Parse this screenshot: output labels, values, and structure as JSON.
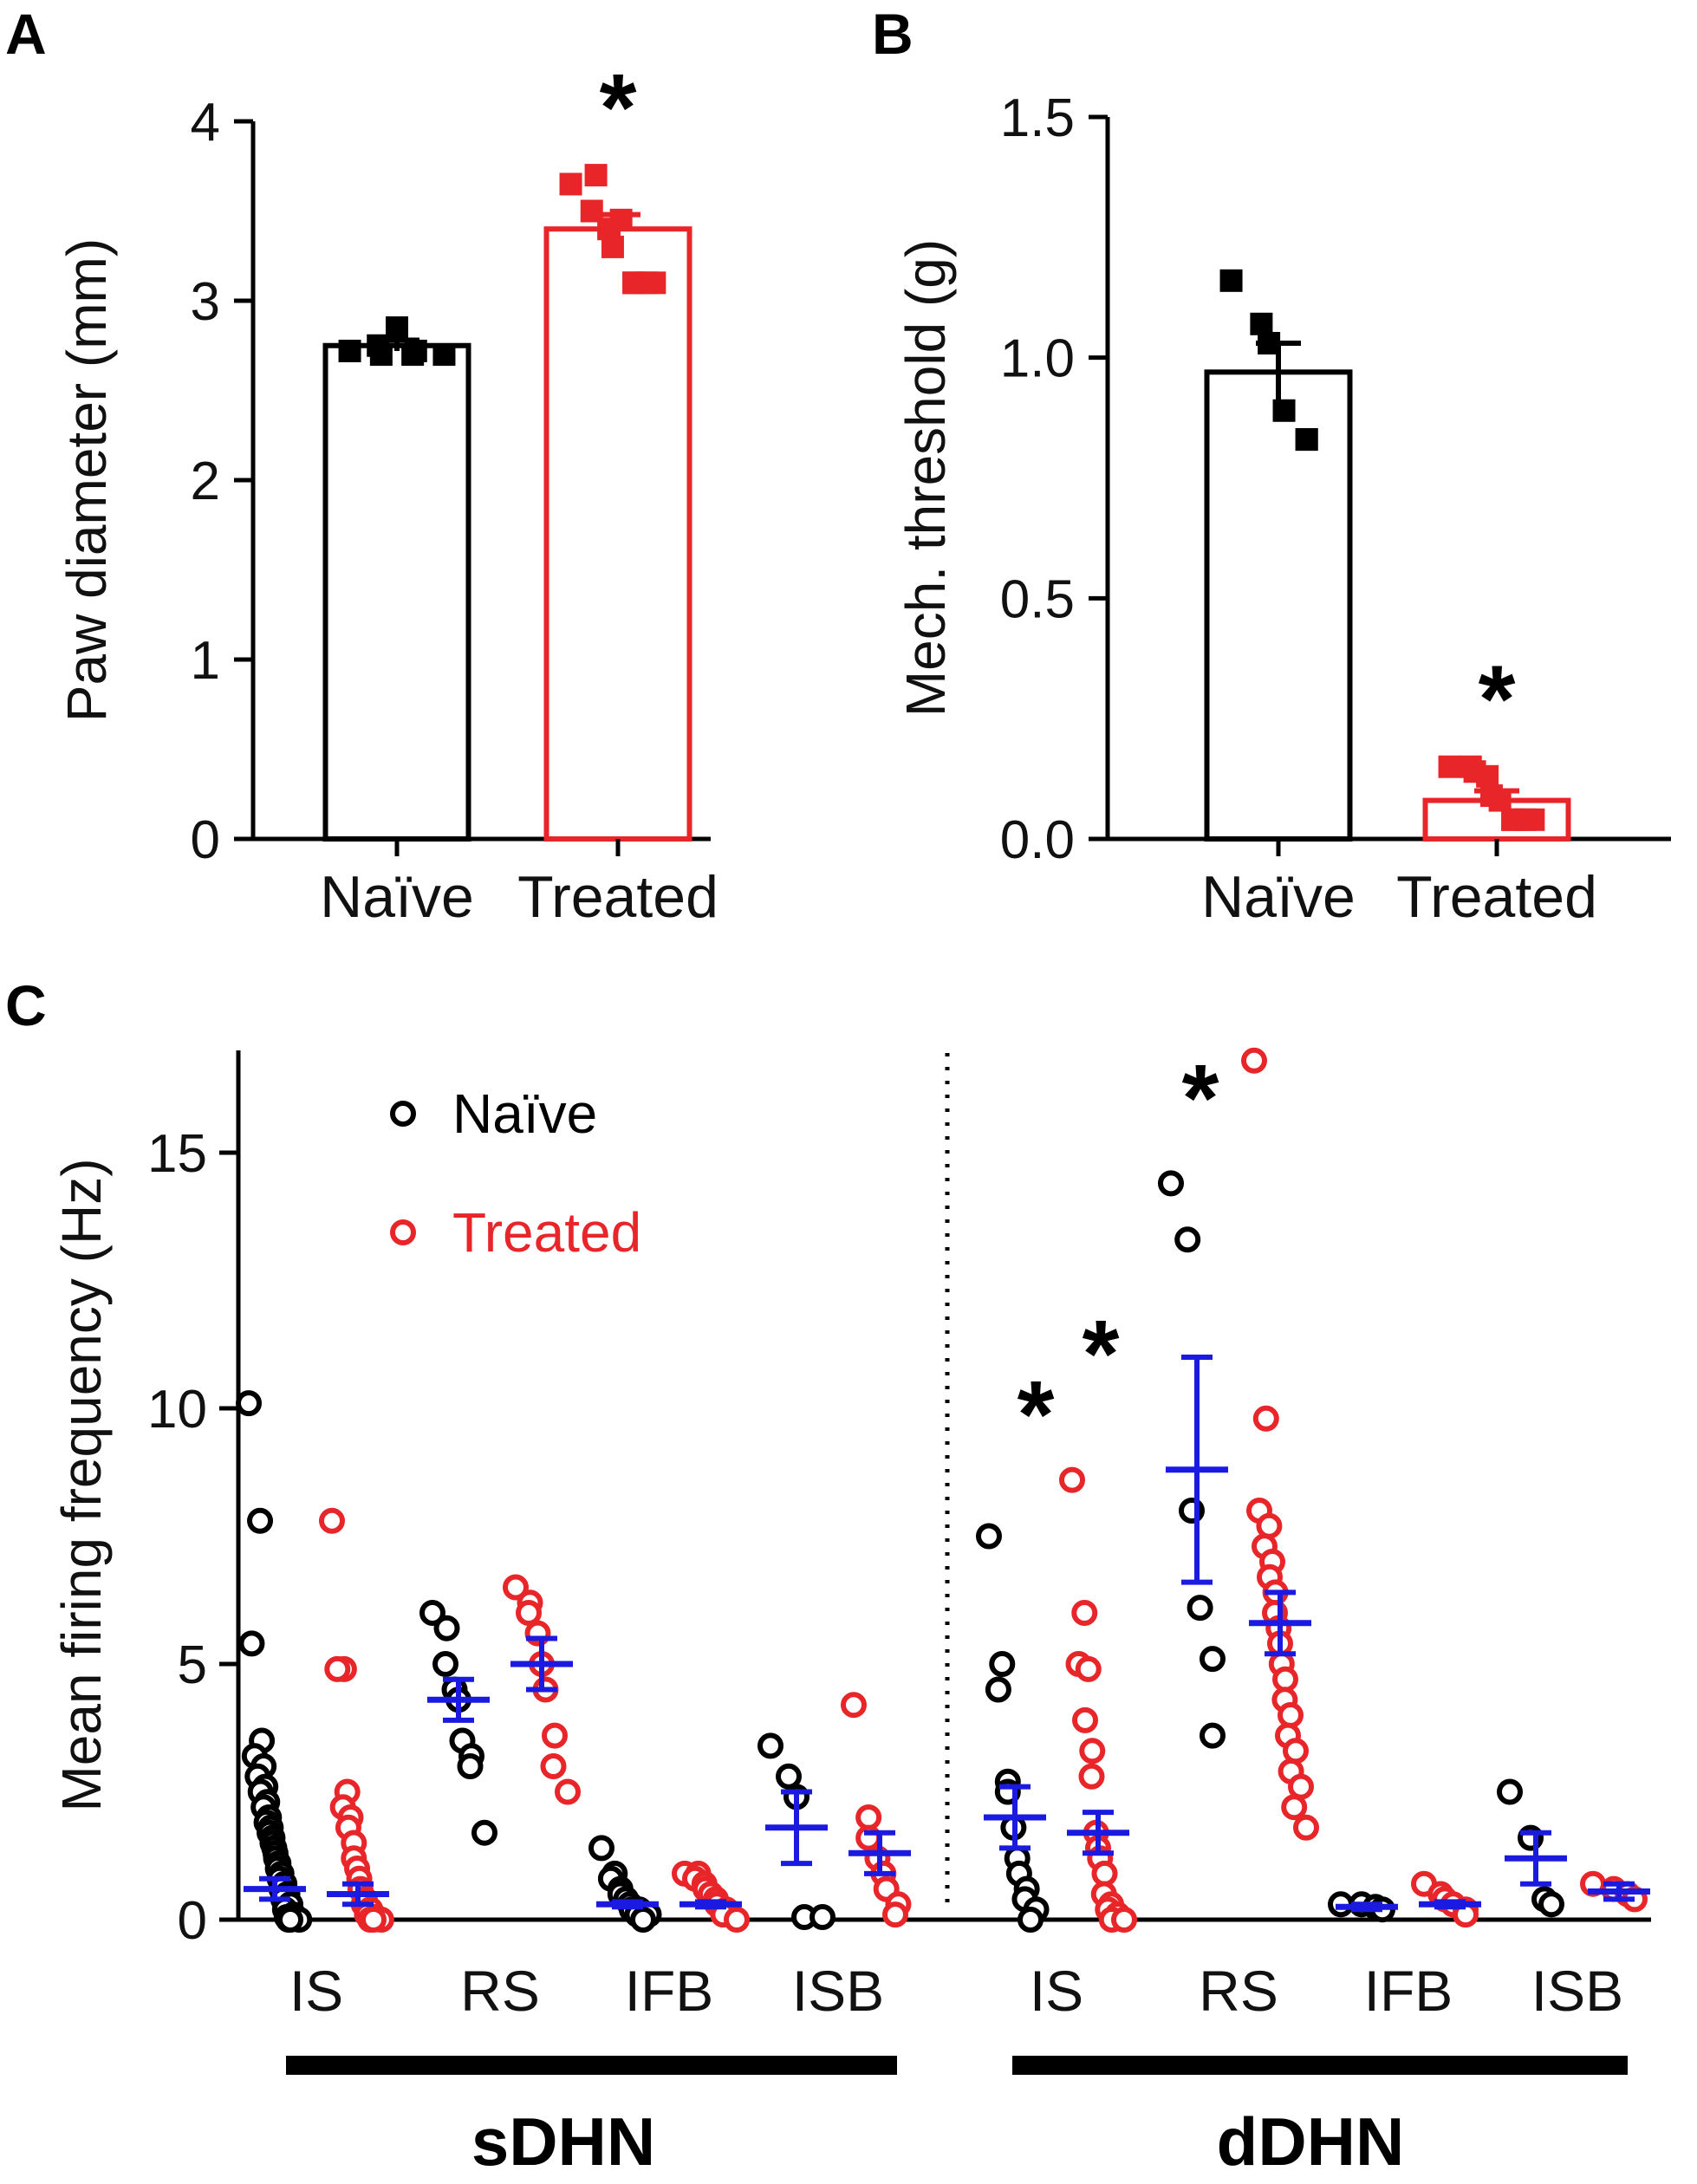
{
  "chart_data": [
    {
      "panel_label": "A",
      "type": "bar",
      "ylabel": "Paw diameter (mm)",
      "ylim": [
        0,
        4
      ],
      "yticks": [
        "0",
        "1",
        "2",
        "3",
        "4"
      ],
      "categories": [
        "Naïve",
        "Treated"
      ],
      "values": [
        2.75,
        3.4
      ],
      "errors": [
        0.03,
        0.08
      ],
      "colors": [
        "#000000",
        "#e8262a"
      ],
      "points": [
        [
          2.72,
          2.75,
          2.7,
          2.85,
          2.7,
          2.72,
          2.7
        ],
        [
          3.65,
          3.7,
          3.5,
          3.4,
          3.3,
          3.45,
          3.1,
          3.1,
          3.1,
          3.1
        ]
      ],
      "significance": [
        "",
        "*"
      ]
    },
    {
      "panel_label": "B",
      "type": "bar",
      "ylabel": "Mech. threshold (g)",
      "ylim": [
        0,
        1.5
      ],
      "yticks": [
        "0.0",
        "0.5",
        "1.0",
        "1.5"
      ],
      "categories": [
        "Naïve",
        "Treated"
      ],
      "values": [
        0.97,
        0.08
      ],
      "errors": [
        0.06,
        0.02
      ],
      "colors": [
        "#000000",
        "#e8262a"
      ],
      "points": [
        [
          1.16,
          1.07,
          1.03,
          0.89,
          0.83,
          0.83
        ],
        [
          0.15,
          0.14,
          0.15,
          0.13,
          0.09,
          0.08,
          0.04,
          0.04,
          0.04,
          0.04
        ]
      ],
      "significance": [
        "",
        "*"
      ]
    },
    {
      "panel_label": "C",
      "type": "scatter",
      "ylabel": "Mean firing frequency (Hz)",
      "ylim": [
        0,
        17
      ],
      "yticks": [
        "0",
        "5",
        "10",
        "15"
      ],
      "categories": [
        "IS",
        "RS",
        "IFB",
        "ISB"
      ],
      "groups": [
        "sDHN",
        "dDHN"
      ],
      "legend": [
        {
          "name": "Naïve",
          "color": "#000000"
        },
        {
          "name": "Treated",
          "color": "#e8262a"
        }
      ],
      "mean_color": "#1a1ae0",
      "series": [
        {
          "group": "sDHN",
          "category": "IS",
          "naive": {
            "mean": 0.6,
            "sem": 0.2,
            "points": [
              10.1,
              7.8,
              5.4,
              3.5,
              3.2,
              3.0,
              2.8,
              2.6,
              2.5,
              2.3,
              2.2,
              2.0,
              1.9,
              1.8,
              1.7,
              1.6,
              1.5,
              1.4,
              1.3,
              1.2,
              1.1,
              1.0,
              0.9,
              0.8,
              0.7,
              0.6,
              0.5,
              0.4,
              0.3,
              0.2,
              0.1,
              0.05,
              0.02,
              0.0,
              0.0,
              0.0
            ]
          },
          "treated": {
            "mean": 0.5,
            "sem": 0.2,
            "points": [
              7.8,
              4.9,
              4.9,
              2.5,
              2.2,
              2.0,
              1.8,
              1.5,
              1.2,
              1.0,
              0.8,
              0.6,
              0.4,
              0.3,
              0.2,
              0.1,
              0.05,
              0.0,
              0.0,
              0.0
            ]
          },
          "significance": ""
        },
        {
          "group": "sDHN",
          "category": "RS",
          "naive": {
            "mean": 4.3,
            "sem": 0.4,
            "points": [
              6.0,
              5.7,
              5.0,
              4.5,
              4.3,
              3.5,
              3.2,
              3.0,
              1.7
            ]
          },
          "treated": {
            "mean": 5.0,
            "sem": 0.5,
            "points": [
              6.5,
              6.2,
              6.0,
              5.6,
              5.0,
              4.5,
              3.6,
              3.0,
              2.5
            ]
          },
          "significance": ""
        },
        {
          "group": "sDHN",
          "category": "IFB",
          "naive": {
            "mean": 0.3,
            "sem": 0.05,
            "points": [
              1.4,
              0.9,
              0.8,
              0.6,
              0.5,
              0.4,
              0.3,
              0.2,
              0.2,
              0.1,
              0.1,
              0.0
            ]
          },
          "treated": {
            "mean": 0.3,
            "sem": 0.05,
            "points": [
              0.9,
              0.9,
              0.8,
              0.7,
              0.6,
              0.5,
              0.4,
              0.3,
              0.2,
              0.1,
              0.0
            ]
          },
          "significance": ""
        },
        {
          "group": "sDHN",
          "category": "ISB",
          "naive": {
            "mean": 1.8,
            "sem": 0.7,
            "points": [
              3.4,
              2.8,
              2.4,
              0.05,
              0.05
            ]
          },
          "treated": {
            "mean": 1.3,
            "sem": 0.4,
            "points": [
              4.2,
              2.0,
              1.6,
              1.2,
              0.9,
              0.6,
              0.3,
              0.1
            ]
          },
          "significance": ""
        },
        {
          "group": "dDHN",
          "category": "IS",
          "naive": {
            "mean": 2.0,
            "sem": 0.6,
            "points": [
              7.5,
              5.0,
              4.5,
              2.7,
              2.5,
              1.8,
              1.2,
              0.9,
              0.6,
              0.4,
              0.2,
              0.0
            ]
          },
          "treated": {
            "mean": 1.7,
            "sem": 0.4,
            "points": [
              8.6,
              6.0,
              5.0,
              4.9,
              3.9,
              3.3,
              2.8,
              1.7,
              1.4,
              1.2,
              0.9,
              0.5,
              0.3,
              0.2,
              0.1,
              0.0,
              0.0
            ]
          },
          "significance": "*"
        },
        {
          "group": "dDHN",
          "category": "RS",
          "naive": {
            "mean": 8.8,
            "sem": 2.2,
            "points": [
              14.4,
              13.3,
              8.0,
              6.1,
              5.1,
              3.6
            ]
          },
          "treated": {
            "mean": 5.8,
            "sem": 0.6,
            "points": [
              16.8,
              9.8,
              8.0,
              7.7,
              7.3,
              7.0,
              6.7,
              6.4,
              6.0,
              5.7,
              5.4,
              5.0,
              4.7,
              4.3,
              4.0,
              3.6,
              3.3,
              2.9,
              2.6,
              2.2,
              1.8
            ]
          },
          "significance": "*"
        },
        {
          "group": "dDHN",
          "category": "IFB",
          "naive": {
            "mean": 0.25,
            "sem": 0.05,
            "points": [
              0.3,
              0.3,
              0.25,
              0.2
            ]
          },
          "treated": {
            "mean": 0.3,
            "sem": 0.05,
            "points": [
              0.7,
              0.5,
              0.4,
              0.3,
              0.2,
              0.1
            ]
          },
          "significance": ""
        },
        {
          "group": "dDHN",
          "category": "ISB",
          "naive": {
            "mean": 1.2,
            "sem": 0.5,
            "points": [
              2.5,
              1.6,
              0.4,
              0.3
            ]
          },
          "treated": {
            "mean": 0.55,
            "sem": 0.15,
            "points": [
              0.7,
              0.6,
              0.5,
              0.4
            ]
          },
          "significance": ""
        }
      ]
    }
  ]
}
